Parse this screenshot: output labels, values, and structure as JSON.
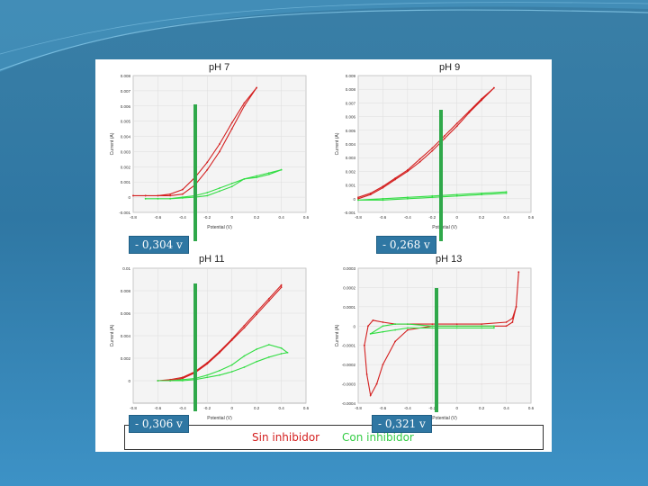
{
  "colors": {
    "sin": "#d42020",
    "con": "#33dd44",
    "marker": "#2fa84a",
    "box": "#2f77a3"
  },
  "legend": {
    "sin_inhibidor": "Sin inhibidor",
    "con_inhibidor": "Con inhibidor"
  },
  "chart_data": [
    {
      "type": "line",
      "title": "pH 7",
      "xlabel": "Potential (V)",
      "ylabel": "Current (A)",
      "xlim": [
        -0.8,
        0.6
      ],
      "ylim": [
        -0.001,
        0.008
      ],
      "xticks": [
        "-0.8",
        "-0.6",
        "-0.4",
        "-0.2",
        "0",
        "0.2",
        "0.4",
        "0.6"
      ],
      "yticks": [
        "-0.001",
        "0",
        "0.001",
        "0.002",
        "0.003",
        "0.004",
        "0.005",
        "0.006",
        "0.007",
        "0.008"
      ],
      "marker_label": "- 0,304 v",
      "marker_x": -0.304,
      "series": [
        {
          "x": [
            -0.8,
            -0.7,
            -0.6,
            -0.5,
            -0.4,
            -0.3,
            -0.2,
            -0.1,
            0,
            0.1,
            0.2,
            0.2,
            0.1,
            0,
            -0.1,
            -0.2,
            -0.3,
            -0.4,
            -0.5,
            -0.6,
            -0.7,
            -0.8
          ],
          "y": [
            0.0001,
            0.0001,
            0.0001,
            0.0001,
            0.0002,
            0.0008,
            0.0018,
            0.003,
            0.0045,
            0.006,
            0.0072,
            0.0072,
            0.0062,
            0.0049,
            0.0035,
            0.0023,
            0.0013,
            0.0005,
            0.0002,
            0.0001,
            0.0001,
            0.0001
          ]
        },
        {
          "x": [
            -0.7,
            -0.6,
            -0.5,
            -0.4,
            -0.3,
            -0.2,
            -0.1,
            0,
            0.1,
            0.2,
            0.3,
            0.4,
            0.4,
            0.3,
            0.2,
            0.1,
            0,
            -0.1,
            -0.2,
            -0.3,
            -0.4,
            -0.5,
            -0.6,
            -0.7
          ],
          "y": [
            -0.0001,
            -0.0001,
            -0.0001,
            -5e-05,
            0.0,
            0.0001,
            0.0004,
            0.0007,
            0.0012,
            0.0013,
            0.0015,
            0.0018,
            0.0018,
            0.0016,
            0.0014,
            0.0012,
            0.0009,
            0.0006,
            0.0003,
            0.0001,
            0.0,
            -0.0001,
            -0.0001,
            -0.0001
          ]
        }
      ]
    },
    {
      "type": "line",
      "title": "pH 9",
      "xlabel": "Potential (V)",
      "ylabel": "Current (A)",
      "xlim": [
        -0.8,
        0.6
      ],
      "ylim": [
        -0.001,
        0.009
      ],
      "xticks": [
        "-0.8",
        "-0.6",
        "-0.4",
        "-0.2",
        "0",
        "0.2",
        "0.4",
        "0.6"
      ],
      "yticks": [
        "-0.001",
        "0",
        "0.001",
        "0.002",
        "0.003",
        "0.004",
        "0.005",
        "0.006",
        "0.007",
        "0.008",
        "0.009"
      ],
      "marker_label": "- 0,268 v",
      "marker_x": -0.268,
      "series": [
        {
          "x": [
            -0.8,
            -0.7,
            -0.6,
            -0.5,
            -0.4,
            -0.3,
            -0.2,
            -0.1,
            0,
            0.1,
            0.2,
            0.3,
            0.3,
            0.2,
            0.1,
            0,
            -0.1,
            -0.2,
            -0.3,
            -0.4,
            -0.5,
            -0.6,
            -0.7,
            -0.8
          ],
          "y": [
            0.0,
            0.0003,
            0.0008,
            0.0014,
            0.002,
            0.0027,
            0.0035,
            0.0044,
            0.0053,
            0.0063,
            0.0072,
            0.0081,
            0.0081,
            0.0073,
            0.0064,
            0.0055,
            0.0046,
            0.0037,
            0.0029,
            0.0021,
            0.0015,
            0.0009,
            0.0004,
            0.0001
          ]
        },
        {
          "x": [
            -0.8,
            -0.6,
            -0.4,
            -0.2,
            0,
            0.2,
            0.4,
            0.4,
            0.2,
            0,
            -0.2,
            -0.4,
            -0.6,
            -0.8
          ],
          "y": [
            -0.0001,
            0.0,
            0.0001,
            0.0002,
            0.0003,
            0.0004,
            0.0005,
            0.0004,
            0.0003,
            0.0002,
            0.0001,
            0.0,
            -0.0001,
            -0.0001
          ]
        }
      ]
    },
    {
      "type": "line",
      "title": "pH 11",
      "xlabel": "Potential (V)",
      "ylabel": "Current (A)",
      "xlim": [
        -0.8,
        0.6
      ],
      "ylim": [
        -0.002,
        0.01
      ],
      "xticks": [
        "-0.8",
        "-0.6",
        "-0.4",
        "-0.2",
        "0",
        "0.2",
        "0.4",
        "0.6"
      ],
      "yticks": [
        "0",
        "0.002",
        "0.004",
        "0.006",
        "0.008",
        "0.01"
      ],
      "marker_label": "- 0,306 v",
      "marker_x": -0.306,
      "series": [
        {
          "x": [
            -0.6,
            -0.5,
            -0.4,
            -0.3,
            -0.2,
            -0.1,
            0,
            0.1,
            0.2,
            0.3,
            0.4,
            0.4,
            0.3,
            0.2,
            0.1,
            0,
            -0.1,
            -0.2,
            -0.3,
            -0.4,
            -0.5,
            -0.6
          ],
          "y": [
            0.0,
            0.0001,
            0.0003,
            0.0008,
            0.0016,
            0.0026,
            0.0037,
            0.0049,
            0.0061,
            0.0073,
            0.0085,
            0.0083,
            0.0071,
            0.0059,
            0.0047,
            0.0036,
            0.0025,
            0.0015,
            0.0007,
            0.0002,
            0.0,
            0.0
          ]
        },
        {
          "x": [
            -0.6,
            -0.5,
            -0.4,
            -0.3,
            -0.2,
            -0.1,
            0,
            0.1,
            0.2,
            0.3,
            0.4,
            0.45,
            0.4,
            0.3,
            0.2,
            0.1,
            0,
            -0.1,
            -0.2,
            -0.3,
            -0.4,
            -0.5,
            -0.6
          ],
          "y": [
            0.0,
            0.0,
            0.0001,
            0.0002,
            0.0005,
            0.0009,
            0.0014,
            0.0022,
            0.0028,
            0.0032,
            0.0029,
            0.0025,
            0.0024,
            0.0021,
            0.0017,
            0.0012,
            0.0008,
            0.0005,
            0.0003,
            0.0001,
            0.0,
            0.0,
            0.0
          ]
        }
      ]
    },
    {
      "type": "line",
      "title": "pH 13",
      "xlabel": "Potential (V)",
      "ylabel": "Current (A)",
      "xlim": [
        -0.8,
        0.6
      ],
      "ylim": [
        -0.0004,
        0.0003
      ],
      "xticks": [
        "-0.8",
        "-0.6",
        "-0.4",
        "-0.2",
        "0",
        "0.2",
        "0.4",
        "0.6"
      ],
      "yticks": [
        "-0.0004",
        "-0.0003",
        "-0.0002",
        "-0.0001",
        "0",
        "0.0001",
        "0.0002",
        "0.0003"
      ],
      "marker_label": "- 0,321 v",
      "marker_x": -0.321,
      "series": [
        {
          "x": [
            -0.75,
            -0.72,
            -0.68,
            -0.6,
            -0.5,
            -0.4,
            -0.2,
            0,
            0.2,
            0.4,
            0.45,
            0.48,
            0.5,
            0.5,
            0.48,
            0.45,
            0.4,
            0.2,
            0,
            -0.2,
            -0.4,
            -0.5,
            -0.6,
            -0.65,
            -0.7,
            -0.73,
            -0.75
          ],
          "y": [
            -0.0001,
            0.0,
            3e-05,
            2e-05,
            1e-05,
            1e-05,
            1e-05,
            1e-05,
            1e-05,
            2e-05,
            4e-05,
            0.0001,
            0.00028,
            0.00028,
            0.0001,
            2e-05,
            0.0,
            0.0,
            0.0,
            0.0,
            -2e-05,
            -8e-05,
            -0.0002,
            -0.0003,
            -0.00036,
            -0.00025,
            -0.0001
          ]
        },
        {
          "x": [
            -0.7,
            -0.6,
            -0.5,
            -0.4,
            -0.2,
            0,
            0.2,
            0.3,
            0.3,
            0.2,
            0,
            -0.2,
            -0.4,
            -0.5,
            -0.6,
            -0.7
          ],
          "y": [
            -4e-05,
            0.0,
            1e-05,
            1e-05,
            0.0,
            0.0,
            0.0,
            0.0,
            -1e-05,
            -1e-05,
            -1e-05,
            -1e-05,
            -1e-05,
            -2e-05,
            -3e-05,
            -4e-05
          ]
        }
      ]
    }
  ]
}
